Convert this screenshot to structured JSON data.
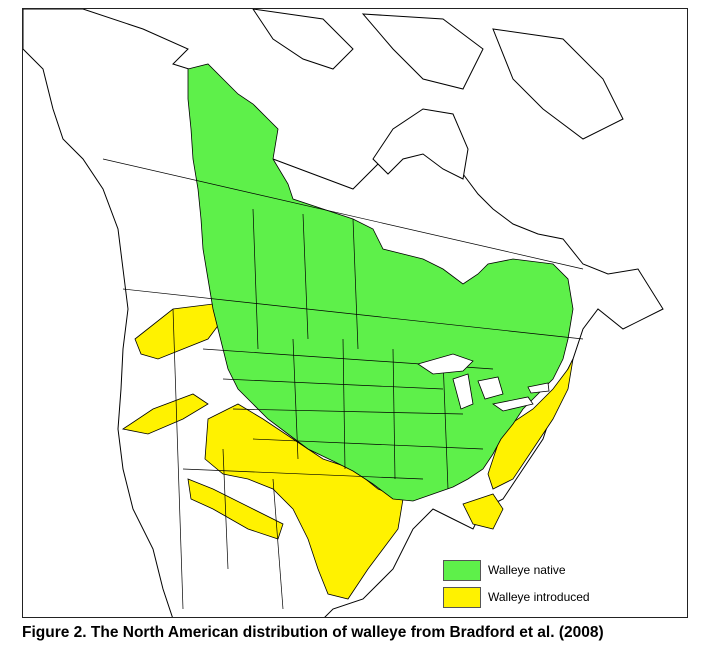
{
  "colors": {
    "native": "#5ef04a",
    "introduced": "#fff200",
    "outline": "#000000",
    "land": "#ffffff"
  },
  "legend": [
    {
      "label": "Walleye native",
      "color": "#5ef04a"
    },
    {
      "label": "Walleye introduced",
      "color": "#fff200"
    }
  ],
  "caption": "Figure 2. The North American distribution of walleye from Bradford et al. (2008)"
}
